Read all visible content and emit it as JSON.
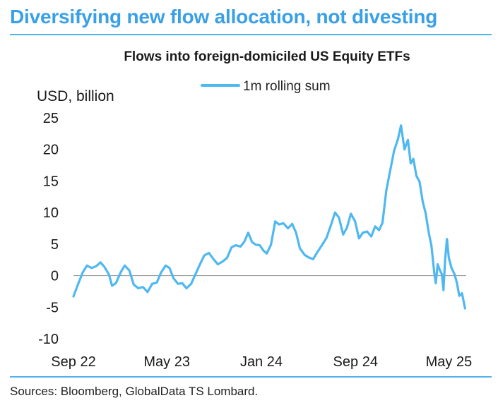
{
  "headline": "Diversifying new flow allocation, not divesting",
  "sources": "Sources: Bloomberg, GlobalData TS Lombard.",
  "colors": {
    "headline": "#3aa0e6",
    "series": "#4fb8f0",
    "rule": "#4fb3ec",
    "zero_line": "#9a9a9a"
  },
  "chart_data": {
    "type": "line",
    "title": "Flows into foreign-domiciled US Equity ETFs",
    "ylabel": "USD, billion",
    "xlabel": "",
    "ylim": [
      -10,
      25
    ],
    "yticks": [
      25,
      20,
      15,
      10,
      5,
      0,
      -5,
      -10
    ],
    "ytick_labels": [
      "25",
      "20",
      "15",
      "10",
      "5",
      "0",
      "-5",
      "-10"
    ],
    "xlim": [
      "2022-09-01",
      "2025-06-15"
    ],
    "xticks": [
      {
        "date": "2022-09-01",
        "label": "Sep 22"
      },
      {
        "date": "2023-05-01",
        "label": "May 23"
      },
      {
        "date": "2024-01-01",
        "label": "Jan 24"
      },
      {
        "date": "2024-09-01",
        "label": "Sep 24"
      },
      {
        "date": "2025-05-01",
        "label": "May 25"
      }
    ],
    "grid": false,
    "zero_line": true,
    "legend": "top-center",
    "series": [
      {
        "name": "1m rolling sum",
        "points": [
          [
            "2022-09-01",
            -3.3
          ],
          [
            "2022-09-12",
            -1.5
          ],
          [
            "2022-09-25",
            0.5
          ],
          [
            "2022-10-06",
            1.6
          ],
          [
            "2022-10-18",
            1.2
          ],
          [
            "2022-10-30",
            1.5
          ],
          [
            "2022-11-10",
            2.1
          ],
          [
            "2022-11-20",
            1.4
          ],
          [
            "2022-12-02",
            0.2
          ],
          [
            "2022-12-10",
            -1.6
          ],
          [
            "2022-12-20",
            -1.2
          ],
          [
            "2023-01-02",
            0.6
          ],
          [
            "2023-01-12",
            1.6
          ],
          [
            "2023-01-24",
            0.8
          ],
          [
            "2023-02-04",
            -1.4
          ],
          [
            "2023-02-16",
            -2.0
          ],
          [
            "2023-02-28",
            -1.8
          ],
          [
            "2023-03-12",
            -2.6
          ],
          [
            "2023-03-24",
            -1.3
          ],
          [
            "2023-04-05",
            -1.1
          ],
          [
            "2023-04-16",
            0.5
          ],
          [
            "2023-04-28",
            1.6
          ],
          [
            "2023-05-08",
            1.2
          ],
          [
            "2023-05-18",
            -0.4
          ],
          [
            "2023-05-30",
            -1.3
          ],
          [
            "2023-06-10",
            -1.2
          ],
          [
            "2023-06-21",
            -2.0
          ],
          [
            "2023-07-03",
            -1.3
          ],
          [
            "2023-07-14",
            0.2
          ],
          [
            "2023-07-26",
            1.8
          ],
          [
            "2023-08-06",
            3.2
          ],
          [
            "2023-08-18",
            3.6
          ],
          [
            "2023-08-30",
            2.6
          ],
          [
            "2023-09-10",
            1.8
          ],
          [
            "2023-09-22",
            2.2
          ],
          [
            "2023-10-04",
            2.8
          ],
          [
            "2023-10-16",
            4.5
          ],
          [
            "2023-10-27",
            4.8
          ],
          [
            "2023-11-08",
            4.6
          ],
          [
            "2023-11-18",
            5.4
          ],
          [
            "2023-11-28",
            6.8
          ],
          [
            "2023-12-08",
            5.3
          ],
          [
            "2023-12-18",
            4.9
          ],
          [
            "2023-12-28",
            4.8
          ],
          [
            "2024-01-06",
            4.0
          ],
          [
            "2024-01-15",
            3.5
          ],
          [
            "2024-01-26",
            4.9
          ],
          [
            "2024-02-06",
            8.6
          ],
          [
            "2024-02-16",
            8.1
          ],
          [
            "2024-02-27",
            8.3
          ],
          [
            "2024-03-10",
            7.5
          ],
          [
            "2024-03-21",
            8.2
          ],
          [
            "2024-03-31",
            6.8
          ],
          [
            "2024-04-10",
            4.3
          ],
          [
            "2024-04-22",
            3.3
          ],
          [
            "2024-05-02",
            2.9
          ],
          [
            "2024-05-14",
            2.6
          ],
          [
            "2024-05-26",
            3.8
          ],
          [
            "2024-06-06",
            4.8
          ],
          [
            "2024-06-18",
            6.0
          ],
          [
            "2024-06-30",
            8.1
          ],
          [
            "2024-07-10",
            10.0
          ],
          [
            "2024-07-20",
            9.2
          ],
          [
            "2024-07-31",
            6.5
          ],
          [
            "2024-08-10",
            7.6
          ],
          [
            "2024-08-20",
            9.8
          ],
          [
            "2024-08-31",
            8.6
          ],
          [
            "2024-09-10",
            5.9
          ],
          [
            "2024-09-20",
            6.8
          ],
          [
            "2024-10-01",
            7.0
          ],
          [
            "2024-10-12",
            6.2
          ],
          [
            "2024-10-22",
            7.8
          ],
          [
            "2024-11-01",
            7.2
          ],
          [
            "2024-11-10",
            8.4
          ],
          [
            "2024-11-20",
            13.5
          ],
          [
            "2024-12-01",
            17.0
          ],
          [
            "2024-12-10",
            19.8
          ],
          [
            "2024-12-20",
            21.6
          ],
          [
            "2024-12-28",
            23.8
          ],
          [
            "2025-01-06",
            20.0
          ],
          [
            "2025-01-15",
            21.5
          ],
          [
            "2025-01-22",
            17.8
          ],
          [
            "2025-01-29",
            18.5
          ],
          [
            "2025-02-06",
            15.8
          ],
          [
            "2025-02-14",
            14.9
          ],
          [
            "2025-02-22",
            11.8
          ],
          [
            "2025-03-02",
            9.8
          ],
          [
            "2025-03-10",
            6.8
          ],
          [
            "2025-03-17",
            4.7
          ],
          [
            "2025-03-24",
            0.5
          ],
          [
            "2025-03-28",
            -1.2
          ],
          [
            "2025-04-02",
            1.8
          ],
          [
            "2025-04-08",
            0.8
          ],
          [
            "2025-04-13",
            0.2
          ],
          [
            "2025-04-17",
            -2.3
          ],
          [
            "2025-04-21",
            2.3
          ],
          [
            "2025-04-26",
            5.8
          ],
          [
            "2025-05-01",
            2.8
          ],
          [
            "2025-05-08",
            1.2
          ],
          [
            "2025-05-16",
            0.2
          ],
          [
            "2025-05-22",
            -1.2
          ],
          [
            "2025-05-28",
            -3.2
          ],
          [
            "2025-06-04",
            -2.8
          ],
          [
            "2025-06-12",
            -5.2
          ]
        ]
      }
    ]
  }
}
